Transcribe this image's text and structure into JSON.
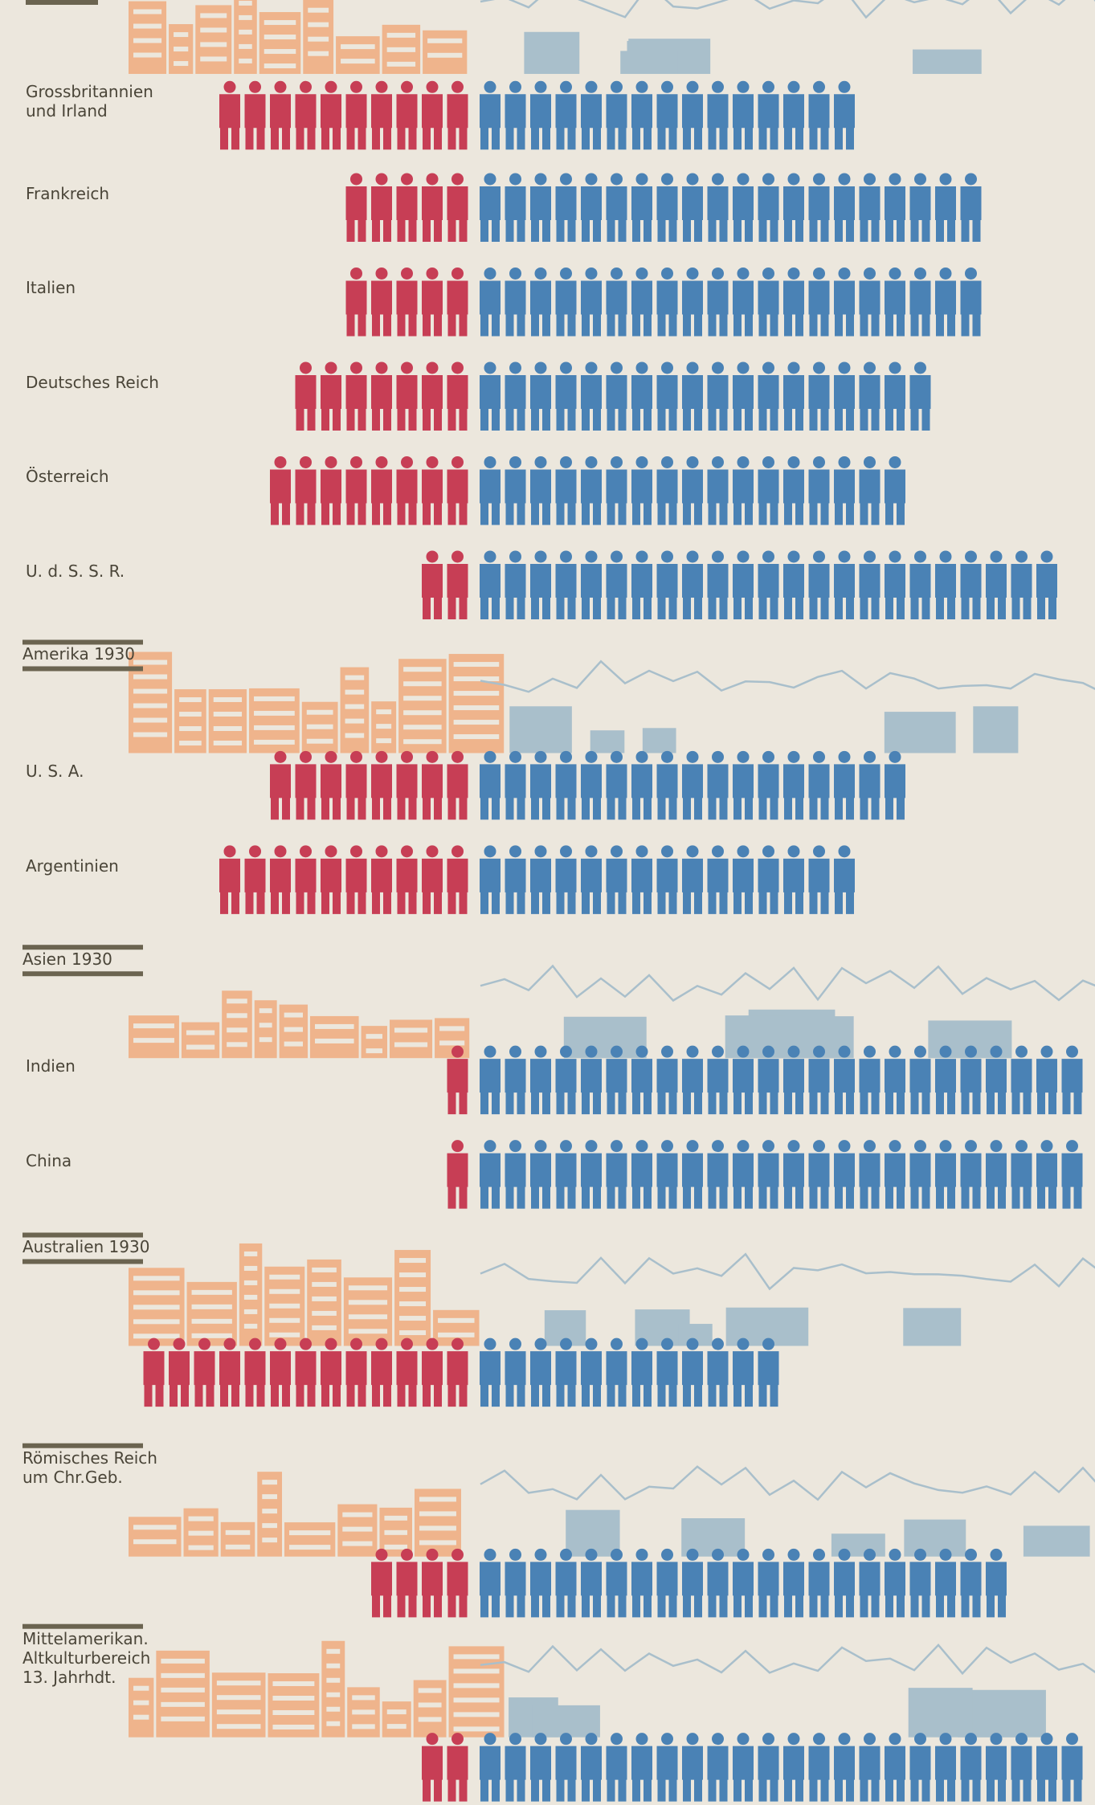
{
  "chart_data": {
    "type": "isotype",
    "sections": [
      {
        "title": null,
        "categories": [
          "Grossbritannien\nund Irland",
          "Frankreich",
          "Italien",
          "Deutsches Reich",
          "Österreich",
          "U. d. S. S. R."
        ],
        "series": [
          {
            "color": "#c73e55",
            "values": [
              10,
              5,
              5,
              7,
              8,
              2
            ]
          },
          {
            "color": "#4a82b5",
            "values": [
              15,
              20,
              20,
              18,
              17,
              23
            ]
          }
        ]
      },
      {
        "title": "Amerika 1930",
        "categories": [
          "U. S. A.",
          "Argentinien"
        ],
        "series": [
          {
            "color": "#c73e55",
            "values": [
              8,
              10
            ]
          },
          {
            "color": "#4a82b5",
            "values": [
              17,
              15
            ]
          }
        ]
      },
      {
        "title": "Asien 1930",
        "categories": [
          "Indien",
          "China"
        ],
        "series": [
          {
            "color": "#c73e55",
            "values": [
              1,
              1
            ]
          },
          {
            "color": "#4a82b5",
            "values": [
              24,
              24
            ]
          }
        ]
      },
      {
        "title": "Australien 1930",
        "categories": [
          null
        ],
        "series": [
          {
            "color": "#c73e55",
            "values": [
              13
            ]
          },
          {
            "color": "#4a82b5",
            "values": [
              12
            ]
          }
        ]
      },
      {
        "title": "Römisches Reich\num Chr.Geb.",
        "categories": [
          null
        ],
        "series": [
          {
            "color": "#c73e55",
            "values": [
              4
            ]
          },
          {
            "color": "#4a82b5",
            "values": [
              21
            ]
          }
        ]
      },
      {
        "title": "Mittelamerikan.\nAltkulturbereich\n13. Jahrhdt.",
        "categories": [
          null
        ],
        "series": [
          {
            "color": "#c73e55",
            "values": [
              2
            ]
          },
          {
            "color": "#4a82b5",
            "values": [
              24
            ]
          }
        ]
      }
    ]
  }
}
